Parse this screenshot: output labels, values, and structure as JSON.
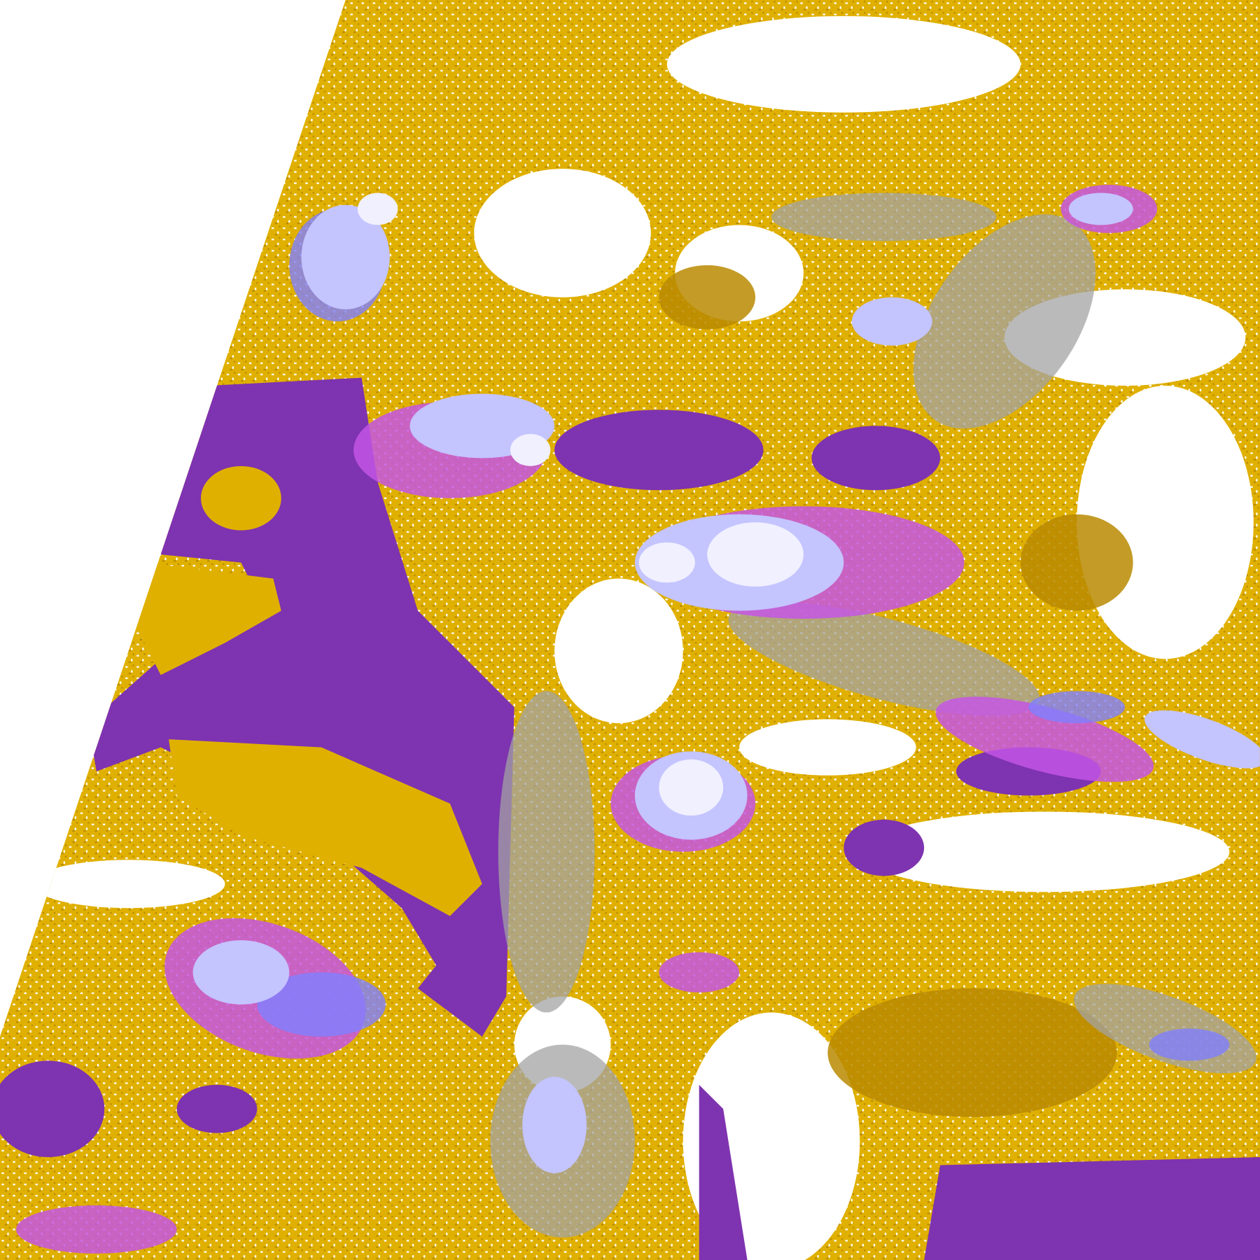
{
  "image": {
    "palette": {
      "background": "#ffffff",
      "gold": "#e0b000",
      "dark_gold": "#b88a00",
      "purple": "#7e33b0",
      "magenta": "#c456e6",
      "lavender": "#c4c4ff",
      "blue": "#7f7fff",
      "gray": "#a3a3a3",
      "pale": "#f0f0ff"
    }
  }
}
